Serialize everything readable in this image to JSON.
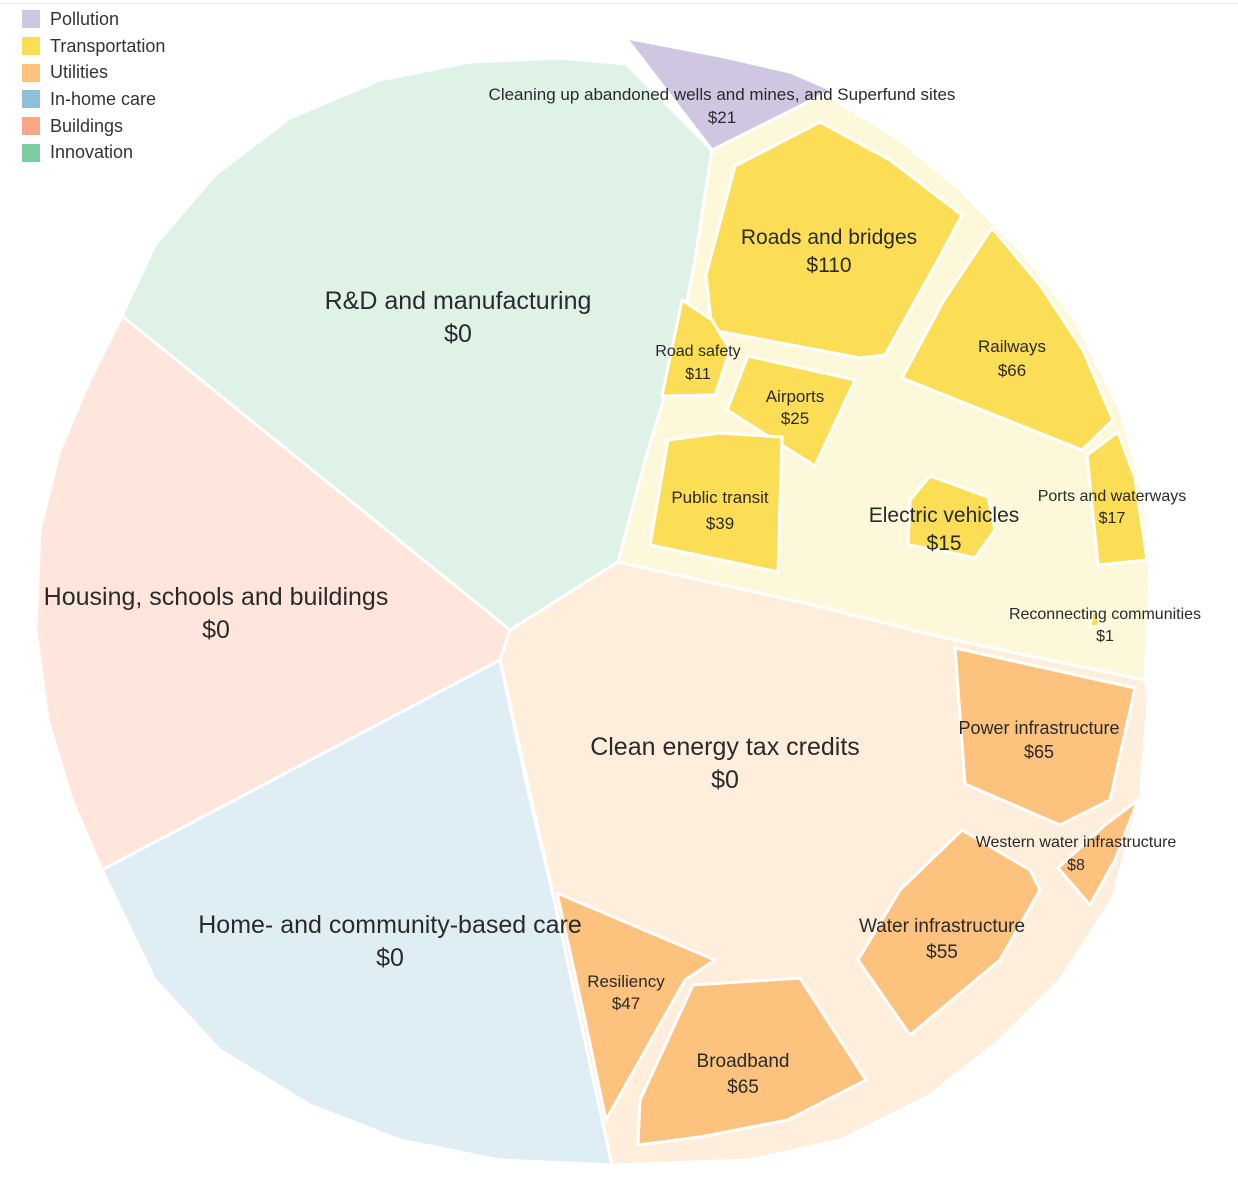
{
  "legend": [
    {
      "name": "Pollution",
      "color": "#cfc7e2"
    },
    {
      "name": "Transportation",
      "color": "#fcdd56"
    },
    {
      "name": "Utilities",
      "color": "#fcc27e"
    },
    {
      "name": "In-home care",
      "color": "#8dbfdb"
    },
    {
      "name": "Buildings",
      "color": "#fba787"
    },
    {
      "name": "Innovation",
      "color": "#7dcba0"
    }
  ],
  "chart_data": {
    "type": "voronoi-treemap",
    "unit": "$",
    "groups": [
      {
        "name": "Innovation",
        "color": "#7dcba0",
        "items": [
          {
            "name": "R&D and manufacturing",
            "value": 0
          }
        ]
      },
      {
        "name": "Buildings",
        "color": "#fba787",
        "items": [
          {
            "name": "Housing, schools and buildings",
            "value": 0
          }
        ]
      },
      {
        "name": "In-home care",
        "color": "#8dbfdb",
        "items": [
          {
            "name": "Home- and community-based care",
            "value": 0
          }
        ]
      },
      {
        "name": "Pollution",
        "color": "#cfc7e2",
        "items": [
          {
            "name": "Cleaning up abandoned wells and mines, and Superfund sites",
            "value": 21
          }
        ]
      },
      {
        "name": "Transportation",
        "color": "#fcdd56",
        "items": [
          {
            "name": "Roads and bridges",
            "value": 110
          },
          {
            "name": "Railways",
            "value": 66
          },
          {
            "name": "Road safety",
            "value": 11
          },
          {
            "name": "Airports",
            "value": 25
          },
          {
            "name": "Public transit",
            "value": 39
          },
          {
            "name": "Electric vehicles",
            "value": 15
          },
          {
            "name": "Ports and waterways",
            "value": 17
          },
          {
            "name": "Reconnecting communities",
            "value": 1
          }
        ]
      },
      {
        "name": "Utilities",
        "color": "#fcc27e",
        "items": [
          {
            "name": "Clean energy tax credits",
            "value": 0
          },
          {
            "name": "Power infrastructure",
            "value": 65
          },
          {
            "name": "Western water infrastructure",
            "value": 8
          },
          {
            "name": "Water infrastructure",
            "value": 55
          },
          {
            "name": "Resiliency",
            "value": 47
          },
          {
            "name": "Broadband",
            "value": 65
          }
        ]
      }
    ]
  }
}
